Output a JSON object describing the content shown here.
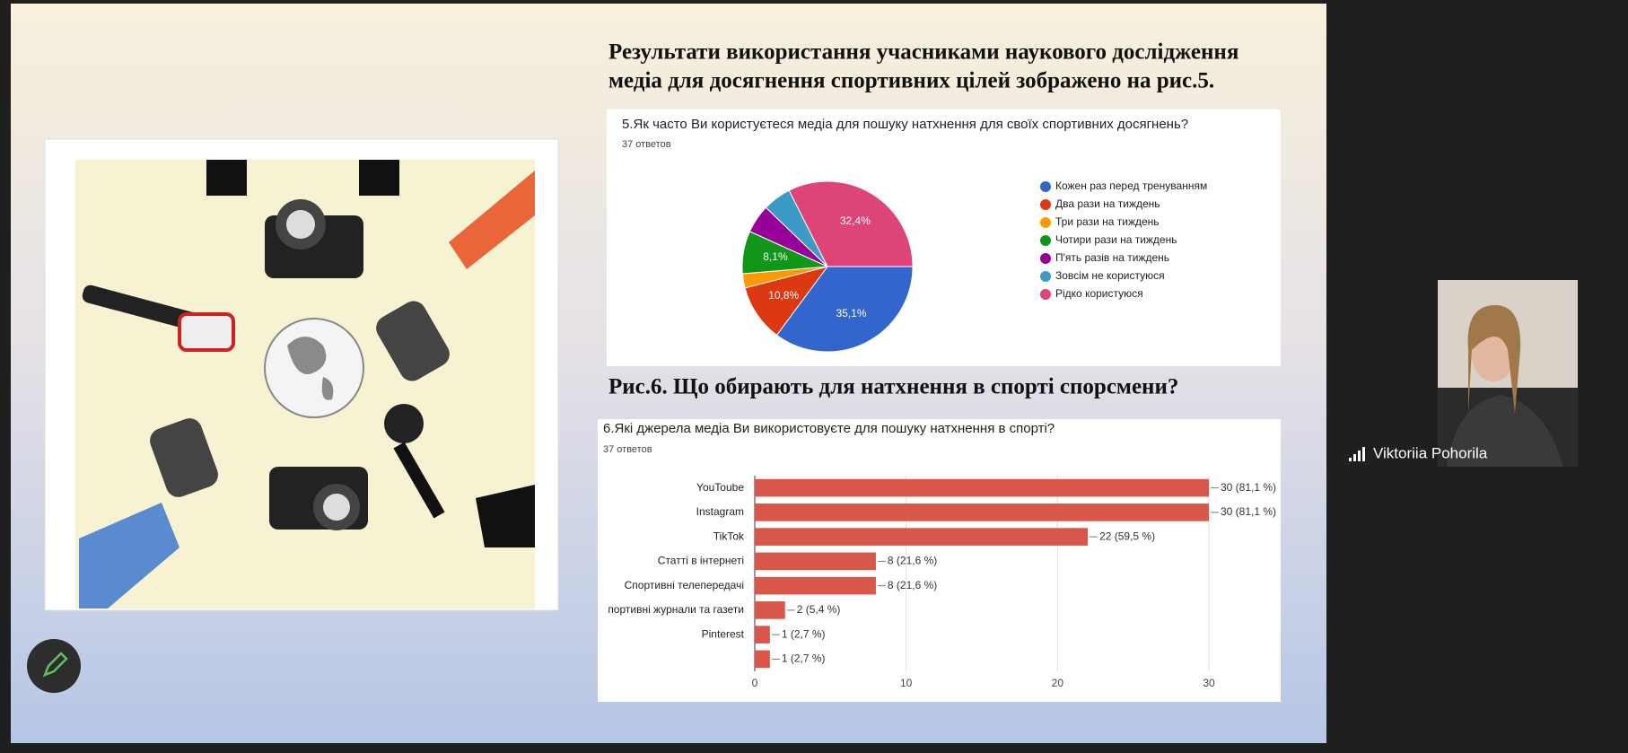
{
  "slide": {
    "heading_lines": [
      "Результати використання учасниками наукового дослідження",
      "медіа для досягнення спортивних цілей зображено на рис.5."
    ],
    "fig6_heading": "Рис.6. Що обирають для натхнення в спорті спорсмени?"
  },
  "chart_data": [
    {
      "type": "pie",
      "title": "5.Як часто Ви користуєтеся медіа для пошуку натхнення для своїх спортивних досягнень?",
      "subtitle": "37 ответов",
      "categories": [
        "Кожен раз перед тренуванням",
        "Два рази на тиждень",
        "Три рази на тиждень",
        "Чотири рази на тиждень",
        "П'ять разів на тиждень",
        "Зовсім не користуюся",
        "Рідко користуюся"
      ],
      "values": [
        35.1,
        10.8,
        2.7,
        8.1,
        5.4,
        5.4,
        32.4
      ],
      "value_labels": [
        "35,1%",
        "10,8%",
        null,
        "8,1%",
        null,
        null,
        "32,4%"
      ],
      "colors": [
        "#3366cc",
        "#dc3912",
        "#ff9900",
        "#109618",
        "#990099",
        "#3b9ac6",
        "#dd4477"
      ]
    },
    {
      "type": "bar",
      "orientation": "horizontal",
      "title": "6.Які джерела медіа Ви використовуєте для пошуку натхнення в спорті?",
      "subtitle": "37 ответов",
      "categories": [
        "YouToube",
        "Instagram",
        "TikTok",
        "Статті в інтернеті",
        "Спортивні телепередачі",
        "портивні журнали та газети",
        "Pinterest",
        null
      ],
      "values": [
        30,
        30,
        22,
        8,
        8,
        2,
        1,
        1
      ],
      "value_labels": [
        "30 (81,1 %)",
        "30 (81,1 %)",
        "22 (59,5 %)",
        "8 (21,6 %)",
        "8 (21,6 %)",
        "2 (5,4 %)",
        "1 (2,7 %)",
        "1 (2,7 %)"
      ],
      "color": "#d9574a",
      "xlim": [
        0,
        30
      ],
      "xticks": [
        0,
        10,
        20,
        30
      ],
      "grid": true
    }
  ],
  "participant": {
    "name": "Viktoriia Pohorila"
  }
}
